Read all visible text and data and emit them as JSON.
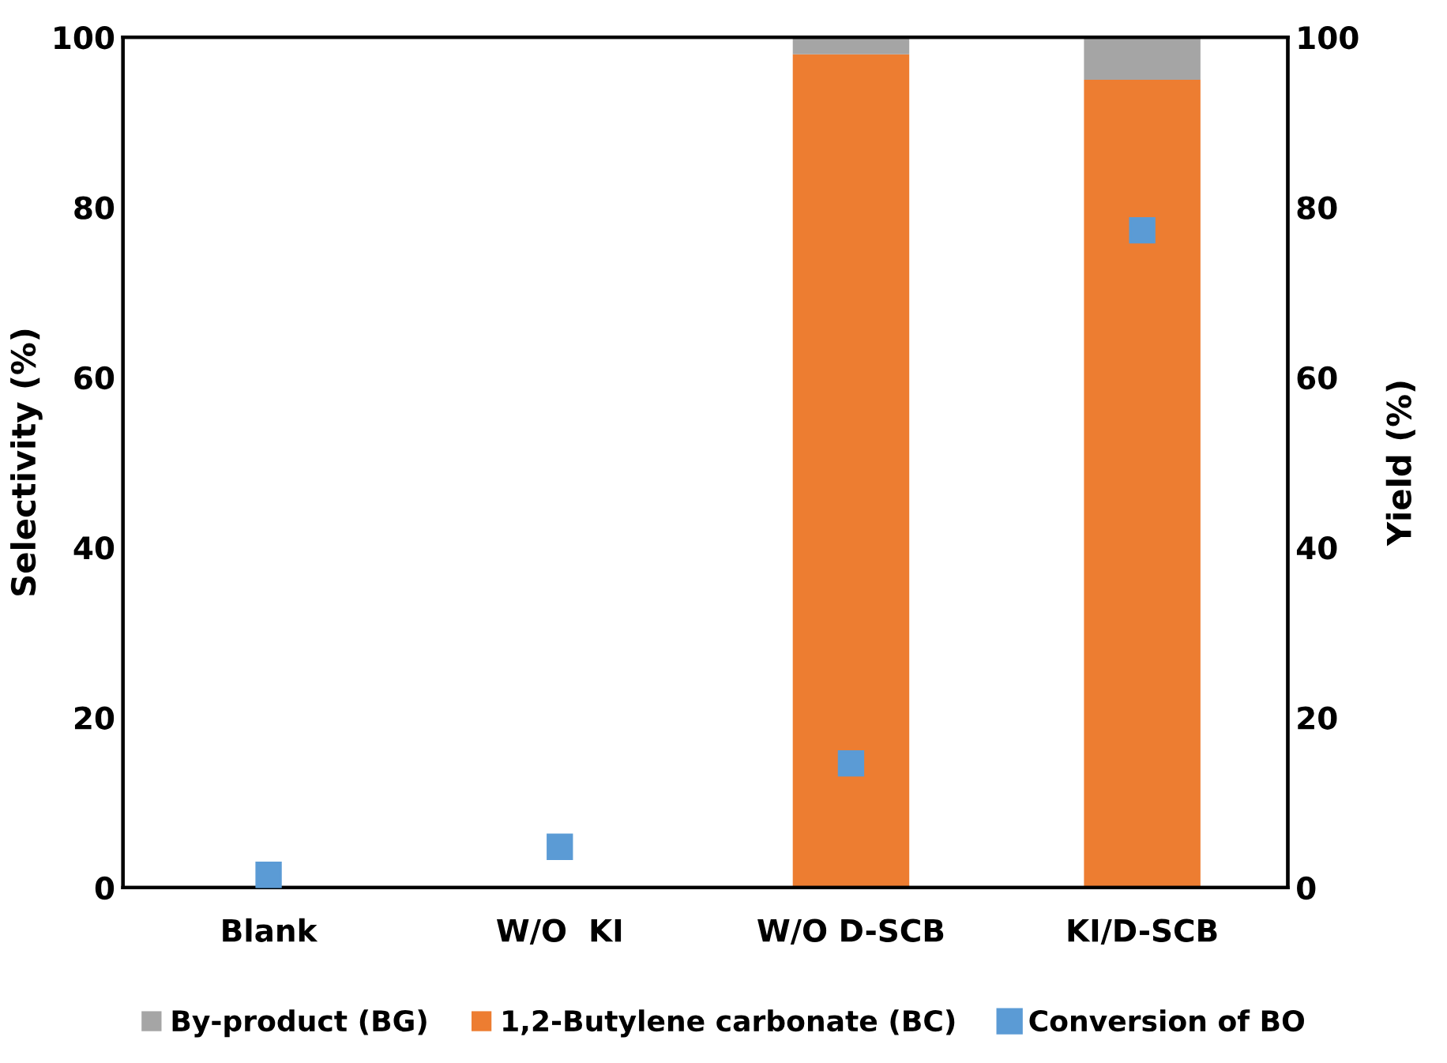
{
  "chart_data": {
    "type": "bar",
    "stacked": true,
    "ylabel": "Selectivity (%)",
    "y2label": "Yield (%)",
    "categories": [
      "Blank",
      "W/O  KI",
      "W/O D-SCB",
      "KI/D-SCB"
    ],
    "series": [
      {
        "name": "1,2-Butylene carbonate (BC)",
        "color": "#ed7d31",
        "values": [
          0,
          0,
          98,
          95
        ]
      },
      {
        "name": "By-product (BG)",
        "color": "#a5a5a5",
        "values": [
          0,
          0,
          2,
          5
        ]
      },
      {
        "name": "Conversion of BO",
        "type": "scatter",
        "axis": "y2",
        "marker": "square",
        "color": "#5b9bd5",
        "values": [
          1.5,
          4.8,
          14.6,
          77.3
        ]
      }
    ],
    "ylim": [
      0,
      100
    ],
    "yticks": [
      0,
      20,
      40,
      60,
      80,
      100
    ],
    "y2lim": [
      0,
      100
    ],
    "y2ticks": [
      0,
      20,
      40,
      60,
      80,
      100
    ],
    "grid": false,
    "legend": "bottom"
  }
}
